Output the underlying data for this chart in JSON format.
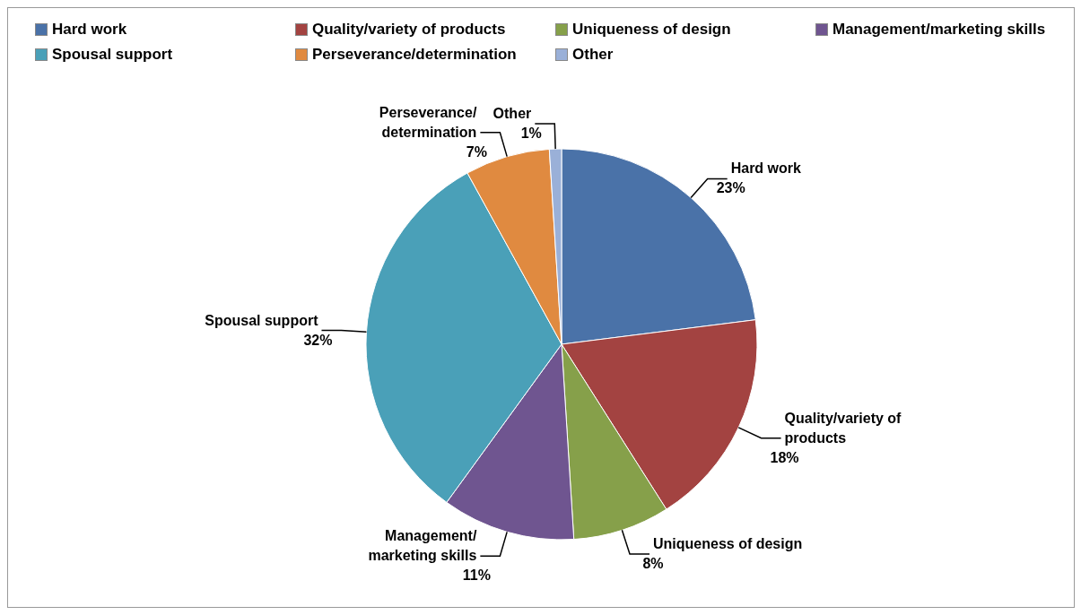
{
  "chart_data": {
    "type": "pie",
    "categories": [
      "Hard work",
      "Quality/variety of products",
      "Uniqueness of design",
      "Management/marketing skills",
      "Spousal support",
      "Perseverance/determination",
      "Other"
    ],
    "values": [
      23,
      18,
      8,
      11,
      32,
      7,
      1
    ],
    "value_labels": [
      "23%",
      "18%",
      "8%",
      "11%",
      "32%",
      "7%",
      "1%"
    ],
    "colors": [
      "#4a72a8",
      "#a34341",
      "#86a04a",
      "#6f5590",
      "#4aa0b8",
      "#e08a40",
      "#9ab0d8"
    ],
    "legend": "top"
  }
}
